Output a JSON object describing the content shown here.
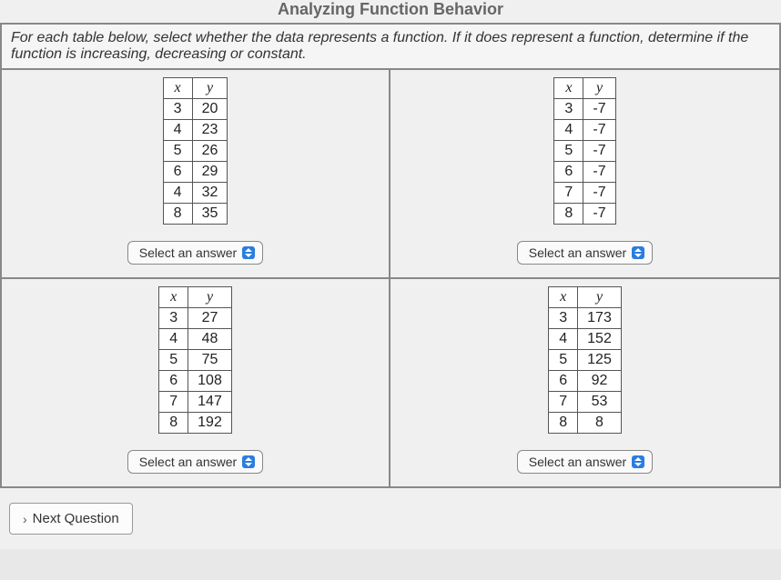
{
  "title": "Analyzing Function Behavior",
  "instructions": "For each table below, select whether the data represents a function. If it does represent a function, determine if the function is increasing, decreasing or constant.",
  "headers": {
    "x": "x",
    "y": "y"
  },
  "tables": [
    {
      "rows": [
        [
          3,
          20
        ],
        [
          4,
          23
        ],
        [
          5,
          26
        ],
        [
          6,
          29
        ],
        [
          4,
          32
        ],
        [
          8,
          35
        ]
      ]
    },
    {
      "rows": [
        [
          3,
          -7
        ],
        [
          4,
          -7
        ],
        [
          5,
          -7
        ],
        [
          6,
          -7
        ],
        [
          7,
          -7
        ],
        [
          8,
          -7
        ]
      ]
    },
    {
      "rows": [
        [
          3,
          27
        ],
        [
          4,
          48
        ],
        [
          5,
          75
        ],
        [
          6,
          108
        ],
        [
          7,
          147
        ],
        [
          8,
          192
        ]
      ]
    },
    {
      "rows": [
        [
          3,
          173
        ],
        [
          4,
          152
        ],
        [
          5,
          125
        ],
        [
          6,
          92
        ],
        [
          7,
          53
        ],
        [
          8,
          8
        ]
      ]
    }
  ],
  "select_label": "Select an answer",
  "next_label": "Next Question",
  "colors": {
    "border": "#888888",
    "bg": "#f0f0f0",
    "stepper": "#2b7de0"
  }
}
